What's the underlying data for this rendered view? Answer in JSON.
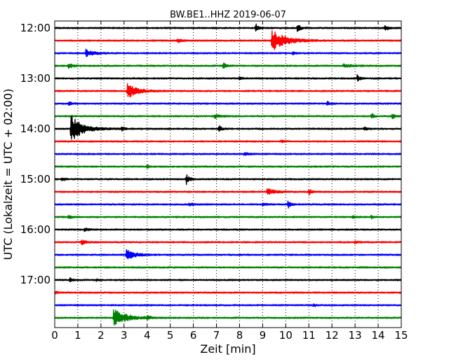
{
  "chart_data": {
    "type": "line",
    "title": "BW.BE1..HHZ 2019-06-07",
    "xlabel": "Zeit  [min]",
    "ylabel": "UTC (Lokalzeit = UTC + 02:00)",
    "xlim": [
      0,
      15
    ],
    "x_ticks": [
      "0",
      "1",
      "2",
      "3",
      "4",
      "5",
      "6",
      "7",
      "8",
      "9",
      "10",
      "11",
      "12",
      "13",
      "14",
      "15"
    ],
    "y_ticks": [
      {
        "label": "12:00",
        "row": 0
      },
      {
        "label": "13:00",
        "row": 4
      },
      {
        "label": "14:00",
        "row": 8
      },
      {
        "label": "15:00",
        "row": 12
      },
      {
        "label": "16:00",
        "row": 16
      },
      {
        "label": "17:00",
        "row": 20
      }
    ],
    "row_interval_min": 15,
    "colors": [
      "#000000",
      "#ff0000",
      "#0000ff",
      "#008000"
    ],
    "grid": "vertical dotted at each minute",
    "traces": [
      {
        "start": "12:00",
        "color": "#000000",
        "events": [
          {
            "t": 8.7,
            "a": 6,
            "d": 0.1
          },
          {
            "t": 10.5,
            "a": 7,
            "d": 0.12
          },
          {
            "t": 14.3,
            "a": 5,
            "d": 0.1
          }
        ]
      },
      {
        "start": "12:15",
        "color": "#ff0000",
        "events": [
          {
            "t": 5.3,
            "a": 3,
            "d": 0.15
          },
          {
            "t": 9.4,
            "a": 15,
            "d": 0.55
          }
        ]
      },
      {
        "start": "12:30",
        "color": "#0000ff",
        "events": [
          {
            "t": 1.35,
            "a": 5,
            "d": 0.3
          },
          {
            "t": 10.3,
            "a": 2.5,
            "d": 0.1
          }
        ]
      },
      {
        "start": "12:45",
        "color": "#008000",
        "events": [
          {
            "t": 0.6,
            "a": 4,
            "d": 0.15
          },
          {
            "t": 7.3,
            "a": 4,
            "d": 0.1
          },
          {
            "t": 12.5,
            "a": 2,
            "d": 0.3
          }
        ]
      },
      {
        "start": "13:00",
        "color": "#000000",
        "events": [
          {
            "t": 8.0,
            "a": 3,
            "d": 0.1
          },
          {
            "t": 13.1,
            "a": 5,
            "d": 0.1
          }
        ]
      },
      {
        "start": "13:15",
        "color": "#ff0000",
        "events": [
          {
            "t": 3.15,
            "a": 10,
            "d": 0.4
          }
        ]
      },
      {
        "start": "13:30",
        "color": "#0000ff",
        "events": [
          {
            "t": 0.6,
            "a": 3,
            "d": 0.1
          },
          {
            "t": 11.8,
            "a": 3,
            "d": 0.1
          }
        ]
      },
      {
        "start": "13:45",
        "color": "#008000",
        "events": [
          {
            "t": 6.9,
            "a": 3,
            "d": 0.2
          },
          {
            "t": 13.7,
            "a": 4,
            "d": 0.1
          },
          {
            "t": 14.6,
            "a": 4,
            "d": 0.1
          }
        ]
      },
      {
        "start": "14:00",
        "color": "#000000",
        "events": [
          {
            "t": 0.7,
            "a": 20,
            "d": 0.45
          },
          {
            "t": 2.9,
            "a": 3,
            "d": 0.1
          },
          {
            "t": 7.1,
            "a": 5,
            "d": 0.1
          },
          {
            "t": 13.4,
            "a": 3,
            "d": 0.1
          }
        ]
      },
      {
        "start": "14:15",
        "color": "#ff0000",
        "events": [
          {
            "t": 9.8,
            "a": 2,
            "d": 0.1
          }
        ]
      },
      {
        "start": "14:30",
        "color": "#0000ff",
        "events": [
          {
            "t": 8.2,
            "a": 2,
            "d": 0.2
          }
        ]
      },
      {
        "start": "14:45",
        "color": "#008000",
        "events": [
          {
            "t": 4.0,
            "a": 2,
            "d": 0.1
          }
        ]
      },
      {
        "start": "15:00",
        "color": "#000000",
        "events": [
          {
            "t": 0.3,
            "a": 3,
            "d": 0.1
          },
          {
            "t": 5.7,
            "a": 7,
            "d": 0.12
          }
        ]
      },
      {
        "start": "15:15",
        "color": "#ff0000",
        "events": [
          {
            "t": 9.2,
            "a": 4,
            "d": 0.35
          },
          {
            "t": 11.0,
            "a": 5,
            "d": 0.1
          }
        ]
      },
      {
        "start": "15:30",
        "color": "#0000ff",
        "events": [
          {
            "t": 5.8,
            "a": 2,
            "d": 0.2
          },
          {
            "t": 9.0,
            "a": 3,
            "d": 0.1
          },
          {
            "t": 10.1,
            "a": 5,
            "d": 0.1
          }
        ]
      },
      {
        "start": "15:45",
        "color": "#008000",
        "events": [
          {
            "t": 0.6,
            "a": 3,
            "d": 0.1
          },
          {
            "t": 12.9,
            "a": 3,
            "d": 0.1
          },
          {
            "t": 13.7,
            "a": 2,
            "d": 0.1
          }
        ]
      },
      {
        "start": "16:00",
        "color": "#000000",
        "events": [
          {
            "t": 1.3,
            "a": 4,
            "d": 0.1
          }
        ]
      },
      {
        "start": "16:15",
        "color": "#ff0000",
        "events": [
          {
            "t": 1.15,
            "a": 4,
            "d": 0.15
          },
          {
            "t": 13.0,
            "a": 2,
            "d": 0.1
          }
        ]
      },
      {
        "start": "16:30",
        "color": "#0000ff",
        "events": [
          {
            "t": 3.1,
            "a": 7,
            "d": 0.35
          }
        ]
      },
      {
        "start": "16:45",
        "color": "#008000",
        "events": []
      },
      {
        "start": "17:00",
        "color": "#000000",
        "events": [
          {
            "t": 0.65,
            "a": 3,
            "d": 0.1
          },
          {
            "t": 1.8,
            "a": 1.5,
            "d": 0.1
          }
        ]
      },
      {
        "start": "17:15",
        "color": "#ff0000",
        "events": [
          {
            "t": 0.05,
            "a": 2,
            "d": 0.1
          }
        ]
      },
      {
        "start": "17:30",
        "color": "#0000ff",
        "events": [
          {
            "t": 11.2,
            "a": 2,
            "d": 0.1
          }
        ]
      },
      {
        "start": "17:45",
        "color": "#008000",
        "events": [
          {
            "t": 2.55,
            "a": 12,
            "d": 0.5
          },
          {
            "t": 4.0,
            "a": 3,
            "d": 0.1
          }
        ]
      }
    ]
  }
}
